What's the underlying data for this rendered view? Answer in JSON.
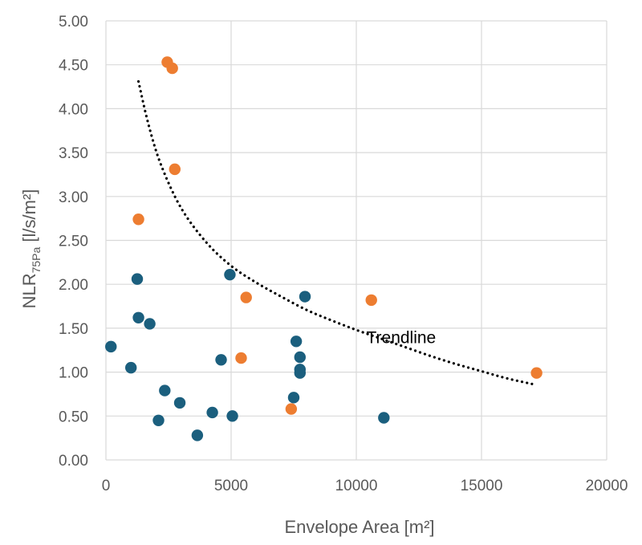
{
  "chart_data": {
    "type": "scatter",
    "xlabel": "Envelope Area [m²]",
    "ylabel": {
      "base": "NLR",
      "subscript": "75Pa",
      "units": " [l/s/m²]"
    },
    "xlim": [
      0,
      20000
    ],
    "ylim": [
      0,
      5
    ],
    "xticks": [
      "0",
      "5000",
      "10000",
      "15000",
      "20000"
    ],
    "yticks": [
      "0.00",
      "0.50",
      "1.00",
      "1.50",
      "2.00",
      "2.50",
      "3.00",
      "3.50",
      "4.00",
      "4.50",
      "5.00"
    ],
    "grid": true,
    "colors": {
      "blue": "#1b5f7e",
      "orange": "#ed7d31",
      "grid": "#d9d9d9",
      "trend": "#000000"
    },
    "series": [
      {
        "color": "blue",
        "points": [
          [
            200,
            1.29
          ],
          [
            1000,
            1.05
          ],
          [
            1250,
            2.06
          ],
          [
            1300,
            1.62
          ],
          [
            1750,
            1.55
          ],
          [
            2100,
            0.45
          ],
          [
            2350,
            0.79
          ],
          [
            2950,
            0.65
          ],
          [
            3650,
            0.28
          ],
          [
            4250,
            0.54
          ],
          [
            4600,
            1.14
          ],
          [
            4950,
            2.11
          ],
          [
            5050,
            0.5
          ],
          [
            7500,
            0.71
          ],
          [
            7600,
            1.35
          ],
          [
            7750,
            1.17
          ],
          [
            7750,
            1.03
          ],
          [
            7750,
            0.99
          ],
          [
            7950,
            1.86
          ],
          [
            11100,
            0.48
          ]
        ]
      },
      {
        "color": "orange",
        "points": [
          [
            1300,
            2.74
          ],
          [
            2450,
            4.53
          ],
          [
            2650,
            4.46
          ],
          [
            2750,
            3.31
          ],
          [
            5400,
            1.16
          ],
          [
            5600,
            1.85
          ],
          [
            7400,
            0.58
          ],
          [
            10600,
            1.82
          ],
          [
            17200,
            0.99
          ]
        ]
      }
    ],
    "trendline": {
      "style": "dotted",
      "x_range": [
        1300,
        17100
      ],
      "points": [
        [
          1300,
          4.31
        ],
        [
          1700,
          3.82
        ],
        [
          2200,
          3.36
        ],
        [
          3000,
          2.87
        ],
        [
          4000,
          2.48
        ],
        [
          5000,
          2.21
        ],
        [
          6000,
          2.02
        ],
        [
          7000,
          1.86
        ],
        [
          8000,
          1.71
        ],
        [
          9000,
          1.59
        ],
        [
          10000,
          1.48
        ],
        [
          11000,
          1.38
        ],
        [
          12000,
          1.28
        ],
        [
          13000,
          1.18
        ],
        [
          14000,
          1.09
        ],
        [
          15000,
          1.01
        ],
        [
          16000,
          0.93
        ],
        [
          17100,
          0.86
        ]
      ],
      "label": "Trendline",
      "label_at": [
        10400,
        1.33
      ]
    }
  }
}
